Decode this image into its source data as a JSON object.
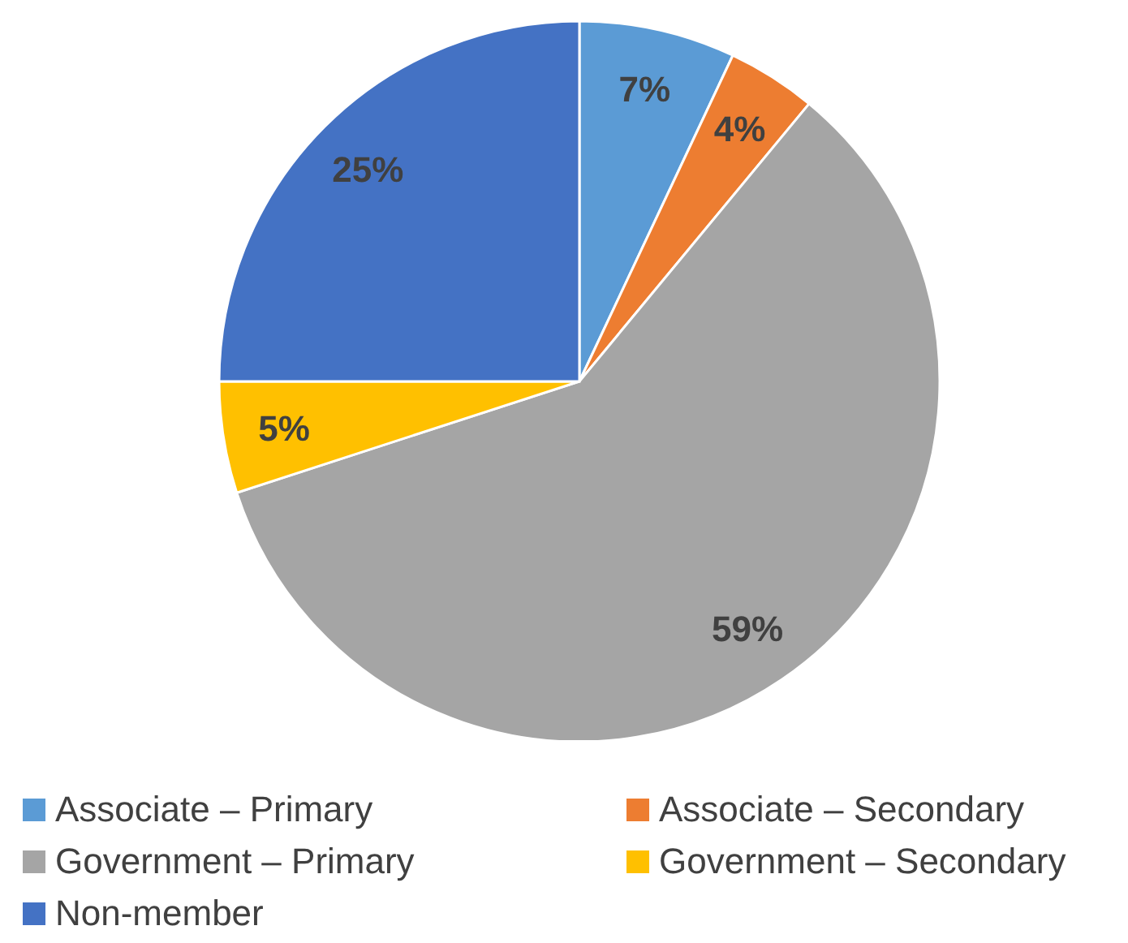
{
  "chart_data": {
    "type": "pie",
    "categories": [
      "Associate – Primary",
      "Associate – Secondary",
      "Government – Primary",
      "Government – Secondary",
      "Non-member"
    ],
    "values": [
      7,
      4,
      59,
      5,
      25
    ],
    "colors": [
      "#5b9bd5",
      "#ed7d31",
      "#a5a5a5",
      "#ffc000",
      "#4472c4"
    ],
    "value_labels": [
      "7%",
      "4%",
      "59%",
      "5%",
      "25%"
    ],
    "legend": "bottom"
  }
}
